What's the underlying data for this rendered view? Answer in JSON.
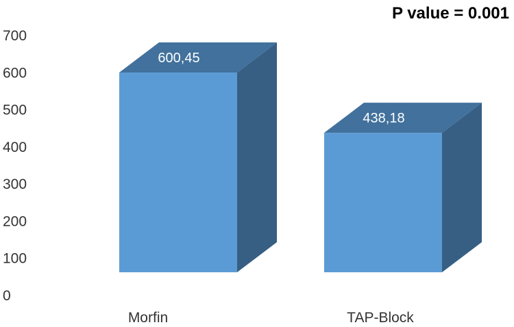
{
  "colors": {
    "front": "#5b9bd5",
    "top": "#41719c",
    "side": "#375f84",
    "text": "#333333",
    "data_label": "#ffffff"
  },
  "chart_data": {
    "type": "bar",
    "title": "P value = 0.001",
    "categories": [
      "Morfin",
      "TAP-Block"
    ],
    "values": [
      600.45,
      438.18
    ],
    "data_labels": [
      "600,45",
      "438,18"
    ],
    "ylim": [
      0,
      700
    ],
    "yticks": [
      0,
      100,
      200,
      300,
      400,
      500,
      600,
      700
    ],
    "xlabel": "",
    "ylabel": "",
    "grid": false,
    "legend": "none"
  }
}
